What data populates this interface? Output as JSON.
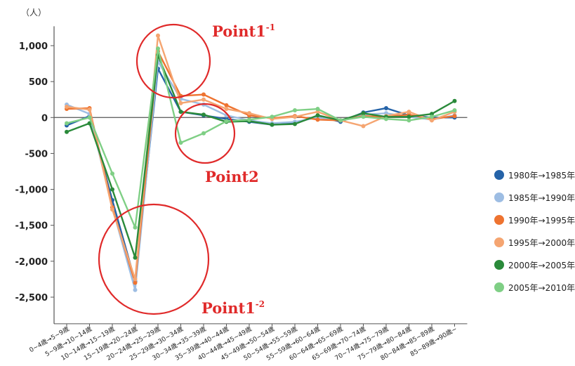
{
  "chart_data": {
    "type": "line",
    "unit_label": "（人）",
    "ylim": [
      -2900,
      1300
    ],
    "yticks": [
      1000,
      500,
      0,
      -500,
      -1000,
      -1500,
      -2000,
      -2500
    ],
    "ytick_labels": [
      "1,000",
      "500",
      "0",
      "-500",
      "-1,000",
      "-1,500",
      "-2,000",
      "-2,500"
    ],
    "grid": false,
    "legend_position": "right",
    "categories": [
      "0~4歳→5~9歳",
      "5~9歳→10~14歳",
      "10~14歳→15~19歳",
      "15~19歳→20~24歳",
      "20~24歳→25~29歳",
      "25~29歳→30~34歳",
      "30~34歳→35~39歳",
      "35~39歳→40~44歳",
      "40~44歳→45~49歳",
      "45~49歳→50~54歳",
      "50~54歳→55~59歳",
      "55~59歳→60~64歳",
      "60~64歳→65~69歳",
      "65~69歳→70~74歳",
      "70~74歳→75~79歳",
      "75~79歳→80~84歳",
      "80~84歳→85~89歳",
      "85~89歳→90歳~"
    ],
    "series": [
      {
        "name": "1980年→1985年",
        "color": "#2563a8",
        "values": [
          -110,
          20,
          -1150,
          -2280,
          680,
          80,
          30,
          -20,
          -60,
          -100,
          -80,
          20,
          -60,
          70,
          130,
          30,
          0,
          0
        ]
      },
      {
        "name": "1985年→1990年",
        "color": "#9dbde3",
        "values": [
          180,
          50,
          -1250,
          -2400,
          780,
          260,
          180,
          30,
          -40,
          -80,
          -60,
          0,
          -40,
          40,
          60,
          10,
          -30,
          30
        ]
      },
      {
        "name": "1990年→1995年",
        "color": "#ee7330",
        "values": [
          120,
          130,
          -1250,
          -2300,
          920,
          300,
          320,
          170,
          30,
          -10,
          20,
          -30,
          -40,
          20,
          10,
          40,
          -20,
          20
        ]
      },
      {
        "name": "1995年→2000年",
        "color": "#f5a571",
        "values": [
          150,
          110,
          -1280,
          -2250,
          1140,
          200,
          250,
          120,
          60,
          -20,
          10,
          80,
          -40,
          -120,
          20,
          80,
          -40,
          80
        ]
      },
      {
        "name": "2000年→2005年",
        "color": "#2a8a3a",
        "values": [
          -200,
          -80,
          -1000,
          -1950,
          870,
          80,
          40,
          -60,
          -50,
          -100,
          -90,
          30,
          -40,
          60,
          10,
          10,
          50,
          230
        ]
      },
      {
        "name": "2005年→2010年",
        "color": "#7fcf85",
        "values": [
          -80,
          0,
          -780,
          -1530,
          960,
          -350,
          -220,
          -50,
          -30,
          10,
          100,
          120,
          -40,
          10,
          -20,
          -40,
          10,
          100
        ]
      }
    ],
    "annotations": [
      {
        "label": "Point1",
        "sup": "-1"
      },
      {
        "label": "Point2",
        "sup": ""
      },
      {
        "label": "Point1",
        "sup": "-2"
      }
    ]
  }
}
